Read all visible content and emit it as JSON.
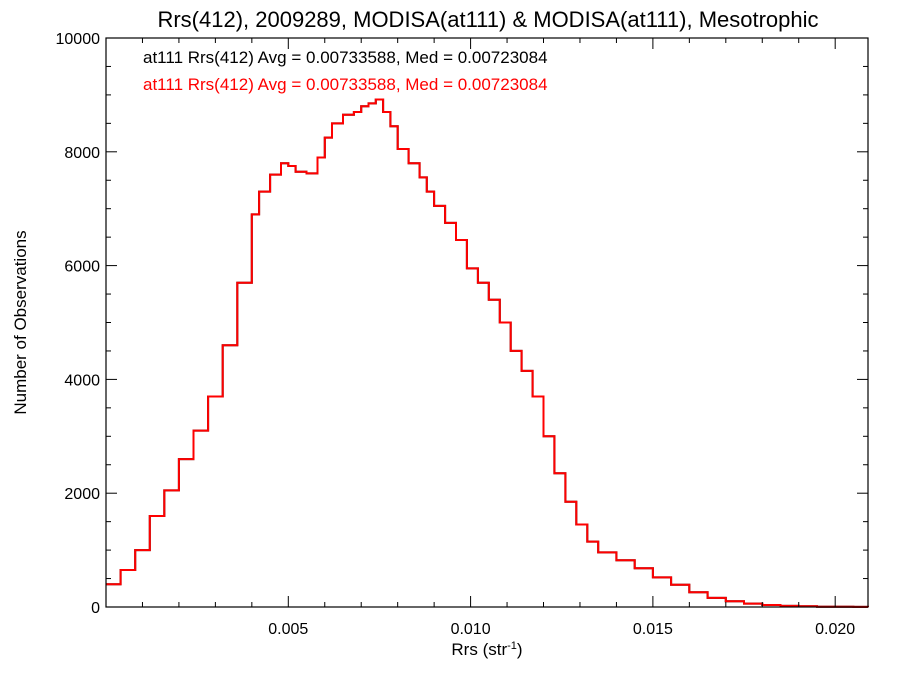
{
  "chart_data": {
    "type": "line",
    "step": true,
    "title": "Rrs(412), 2009289, MODISA(at111) & MODISA(at111), Mesotrophic",
    "xlabel_main": "Rrs (str",
    "xlabel_sup": "-1",
    "xlabel_end": ")",
    "ylabel": "Number of Observations",
    "xlim": [
      0.0,
      0.0209
    ],
    "ylim": [
      0,
      10000
    ],
    "xticks": [
      0.005,
      0.01,
      0.015,
      0.02
    ],
    "xtick_labels": [
      "0.005",
      "0.010",
      "0.015",
      "0.020"
    ],
    "yticks": [
      0,
      2000,
      4000,
      6000,
      8000,
      10000
    ],
    "ytick_labels": [
      "0",
      "2000",
      "4000",
      "6000",
      "8000",
      "10000"
    ],
    "annotations": [
      {
        "text": "at111 Rrs(412) Avg = 0.00733588, Med = 0.00723084",
        "color": "#000000"
      },
      {
        "text": "at111 Rrs(412) Avg = 0.00733588, Med = 0.00723084",
        "color": "#ff0000"
      }
    ],
    "series": [
      {
        "color": "#000000",
        "x": [
          0,
          0.0004,
          0.0008,
          0.0012,
          0.0016,
          0.002,
          0.0024,
          0.0028,
          0.0032,
          0.0036,
          0.004,
          0.0042,
          0.0045,
          0.0048,
          0.005,
          0.0052,
          0.0055,
          0.0058,
          0.006,
          0.0062,
          0.0065,
          0.0068,
          0.007,
          0.0072,
          0.0074,
          0.0076,
          0.0078,
          0.008,
          0.0083,
          0.0086,
          0.0088,
          0.009,
          0.0093,
          0.0096,
          0.0099,
          0.0102,
          0.0105,
          0.0108,
          0.0111,
          0.0114,
          0.0117,
          0.012,
          0.0123,
          0.0126,
          0.0129,
          0.0132,
          0.0135,
          0.014,
          0.0145,
          0.015,
          0.0155,
          0.016,
          0.0165,
          0.017,
          0.0175,
          0.018,
          0.0185,
          0.019,
          0.0195,
          0.02,
          0.0205,
          0.0209
        ],
        "y": [
          400,
          650,
          1000,
          1600,
          2050,
          2600,
          3100,
          3700,
          4600,
          5700,
          6900,
          7300,
          7600,
          7800,
          7750,
          7650,
          7620,
          7900,
          8250,
          8500,
          8650,
          8700,
          8800,
          8850,
          8920,
          8700,
          8450,
          8050,
          7800,
          7550,
          7300,
          7050,
          6750,
          6450,
          5950,
          5700,
          5400,
          5000,
          4500,
          4150,
          3700,
          3000,
          2350,
          1850,
          1450,
          1150,
          960,
          820,
          680,
          520,
          390,
          260,
          160,
          100,
          60,
          35,
          20,
          12,
          6,
          3,
          1,
          0
        ]
      },
      {
        "color": "#ff0000",
        "x": [
          0,
          0.0004,
          0.0008,
          0.0012,
          0.0016,
          0.002,
          0.0024,
          0.0028,
          0.0032,
          0.0036,
          0.004,
          0.0042,
          0.0045,
          0.0048,
          0.005,
          0.0052,
          0.0055,
          0.0058,
          0.006,
          0.0062,
          0.0065,
          0.0068,
          0.007,
          0.0072,
          0.0074,
          0.0076,
          0.0078,
          0.008,
          0.0083,
          0.0086,
          0.0088,
          0.009,
          0.0093,
          0.0096,
          0.0099,
          0.0102,
          0.0105,
          0.0108,
          0.0111,
          0.0114,
          0.0117,
          0.012,
          0.0123,
          0.0126,
          0.0129,
          0.0132,
          0.0135,
          0.014,
          0.0145,
          0.015,
          0.0155,
          0.016,
          0.0165,
          0.017,
          0.0175,
          0.018,
          0.0185,
          0.019,
          0.0195,
          0.02,
          0.0205,
          0.0209
        ],
        "y": [
          400,
          650,
          1000,
          1600,
          2050,
          2600,
          3100,
          3700,
          4600,
          5700,
          6900,
          7300,
          7600,
          7800,
          7750,
          7650,
          7620,
          7900,
          8250,
          8500,
          8650,
          8700,
          8800,
          8850,
          8920,
          8700,
          8450,
          8050,
          7800,
          7550,
          7300,
          7050,
          6750,
          6450,
          5950,
          5700,
          5400,
          5000,
          4500,
          4150,
          3700,
          3000,
          2350,
          1850,
          1450,
          1150,
          960,
          820,
          680,
          520,
          390,
          260,
          160,
          100,
          60,
          35,
          20,
          12,
          6,
          3,
          1,
          0
        ]
      }
    ]
  }
}
